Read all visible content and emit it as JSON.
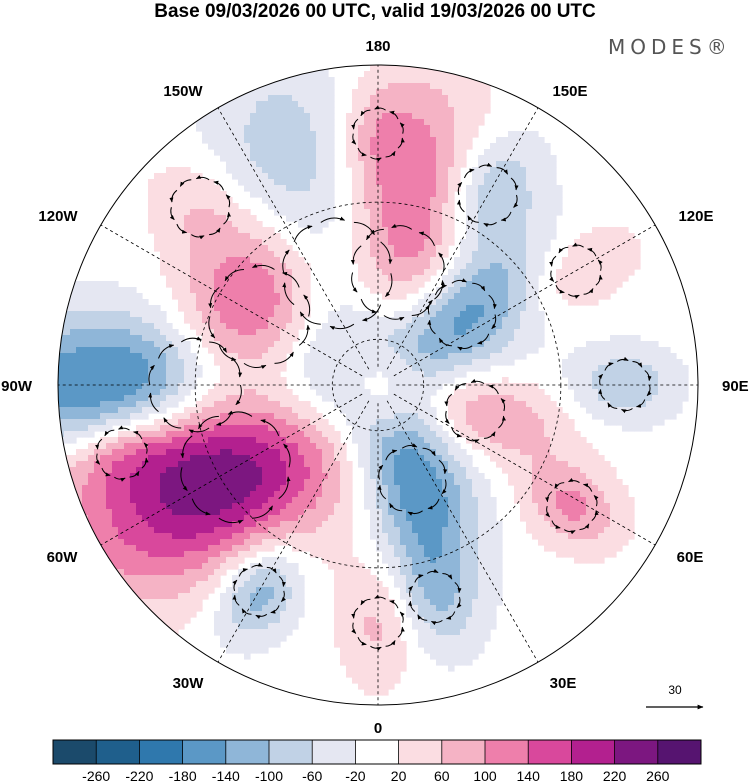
{
  "title": "Base 09/03/2026 00 UTC, valid 19/03/2026 00 UTC",
  "brand": "MODES®",
  "meridian_labels": {
    "lon_180": "180",
    "lon_150e": "150E",
    "lon_120e": "120E",
    "lon_90e": "90E",
    "lon_60e": "60E",
    "lon_30e": "30E",
    "lon_0": "0",
    "lon_30w": "30W",
    "lon_60w": "60W",
    "lon_90w": "90W",
    "lon_120w": "120W",
    "lon_150w": "150W"
  },
  "reference_vector": {
    "label": "30"
  },
  "colorbar": {
    "ticks": [
      "-260",
      "-220",
      "-180",
      "-140",
      "-100",
      "-60",
      "-20",
      "20",
      "60",
      "100",
      "140",
      "180",
      "220",
      "260"
    ],
    "colors": [
      "#1b4a6b",
      "#1f5f8c",
      "#2f78ad",
      "#5b98c6",
      "#8fb6d8",
      "#c1d2e6",
      "#e5e7f2",
      "#ffffff",
      "#fbdde2",
      "#f5b3c5",
      "#ee7fab",
      "#d9489c",
      "#b3208f",
      "#7c1780",
      "#561470"
    ]
  },
  "anomalies": [
    {
      "lon": -160,
      "colat": 26,
      "sx": 13,
      "sy": 26,
      "rot": 0,
      "amp": -240
    },
    {
      "lon": 170,
      "colat": 25,
      "sx": 11,
      "sy": 25,
      "rot": 0,
      "amp": 220
    },
    {
      "lon": 150,
      "colat": 48,
      "sx": 7,
      "sy": 10,
      "rot": 0,
      "amp": -120
    },
    {
      "lon": 130,
      "colat": 24,
      "sx": 8,
      "sy": 15,
      "rot": 0,
      "amp": -180
    },
    {
      "lon": -120,
      "colat": 30,
      "sx": 22,
      "sy": 12,
      "rot": 0,
      "amp": 260
    },
    {
      "lon": -90,
      "colat": 40,
      "sx": 11,
      "sy": 32,
      "rot": 0,
      "amp": -260
    },
    {
      "lon": -60,
      "colat": 36,
      "sx": 13,
      "sy": 26,
      "rot": 0,
      "amp": 250
    },
    {
      "lon": -30,
      "colat": 52,
      "sx": 6,
      "sy": 8,
      "rot": 0,
      "amp": -140
    },
    {
      "lon": 20,
      "colat": 22,
      "sx": 8,
      "sy": 16,
      "rot": 0,
      "amp": -170
    },
    {
      "lon": 75,
      "colat": 22,
      "sx": 7,
      "sy": 14,
      "rot": 0,
      "amp": 130
    },
    {
      "lon": 90,
      "colat": 54,
      "sx": 6,
      "sy": 8,
      "rot": 0,
      "amp": -90
    },
    {
      "lon": 58,
      "colat": 50,
      "sx": 6,
      "sy": 8,
      "rot": 0,
      "amp": 110
    },
    {
      "lon": 15,
      "colat": 48,
      "sx": 6,
      "sy": 9,
      "rot": 0,
      "amp": -80
    },
    {
      "lon": 120,
      "colat": 50,
      "sx": 6,
      "sy": 10,
      "rot": 0,
      "amp": 70
    },
    {
      "lon": 0,
      "colat": 52,
      "sx": 6,
      "sy": 10,
      "rot": 0,
      "amp": 70
    },
    {
      "lon": -135,
      "colat": 55,
      "sx": 7,
      "sy": 9,
      "rot": 0,
      "amp": 60
    },
    {
      "lon": -75,
      "colat": 58,
      "sx": 6,
      "sy": 10,
      "rot": 0,
      "amp": 90
    },
    {
      "lon": -180,
      "colat": 55,
      "sx": 6,
      "sy": 8,
      "rot": 0,
      "amp": 60
    }
  ]
}
